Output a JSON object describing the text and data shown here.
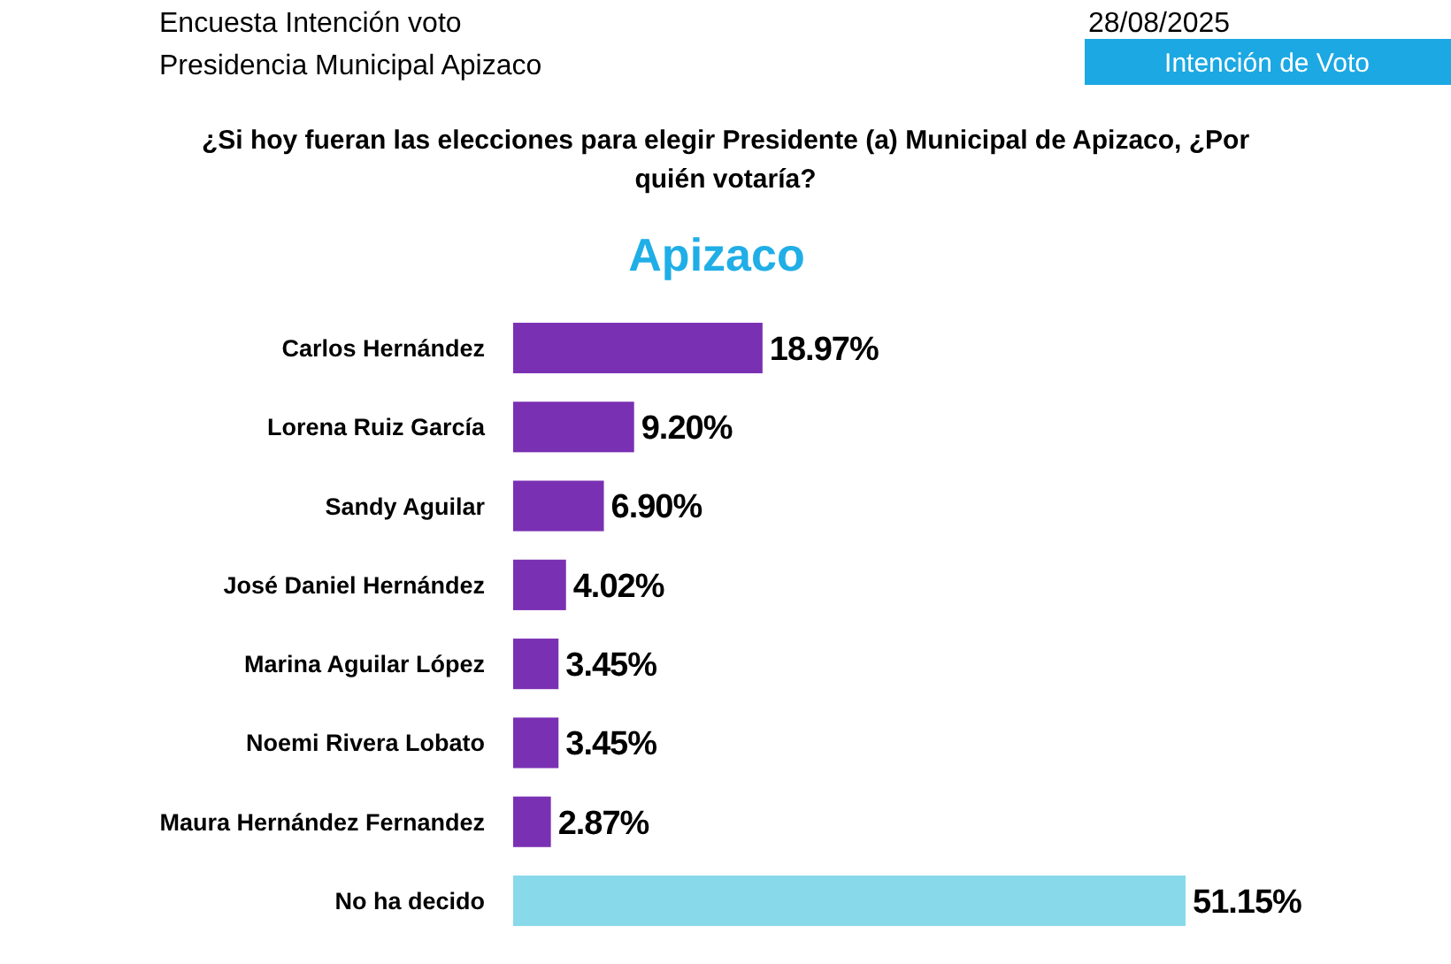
{
  "chart_data": {
    "type": "bar",
    "orientation": "horizontal",
    "title": "Apizaco",
    "subtitle": "¿Si hoy fueran las elecciones para elegir Presidente (a) Municipal de Apizaco, ¿Por quién votaría?",
    "categories": [
      "Carlos Hernández",
      "Lorena Ruiz García",
      "Sandy Aguilar",
      "José Daniel Hernández",
      "Marina Aguilar López",
      "Noemi Rivera Lobato",
      "Maura Hernández Fernandez",
      "No ha decido"
    ],
    "values": [
      18.97,
      9.2,
      6.9,
      4.02,
      3.45,
      3.45,
      2.87,
      51.15
    ],
    "value_labels": [
      "18.97%",
      "9.20%",
      "6.90%",
      "4.02%",
      "3.45%",
      "3.45%",
      "2.87%",
      "51.15%"
    ],
    "colors": [
      "#7a30b3",
      "#7a30b3",
      "#7a30b3",
      "#7a30b3",
      "#7a30b3",
      "#7a30b3",
      "#7a30b3",
      "#88d9ea"
    ],
    "annotations": [
      "Encuesta Intención voto",
      "Presidencia Municipal Apizaco",
      "28/08/2025",
      "Intención de Voto"
    ]
  }
}
